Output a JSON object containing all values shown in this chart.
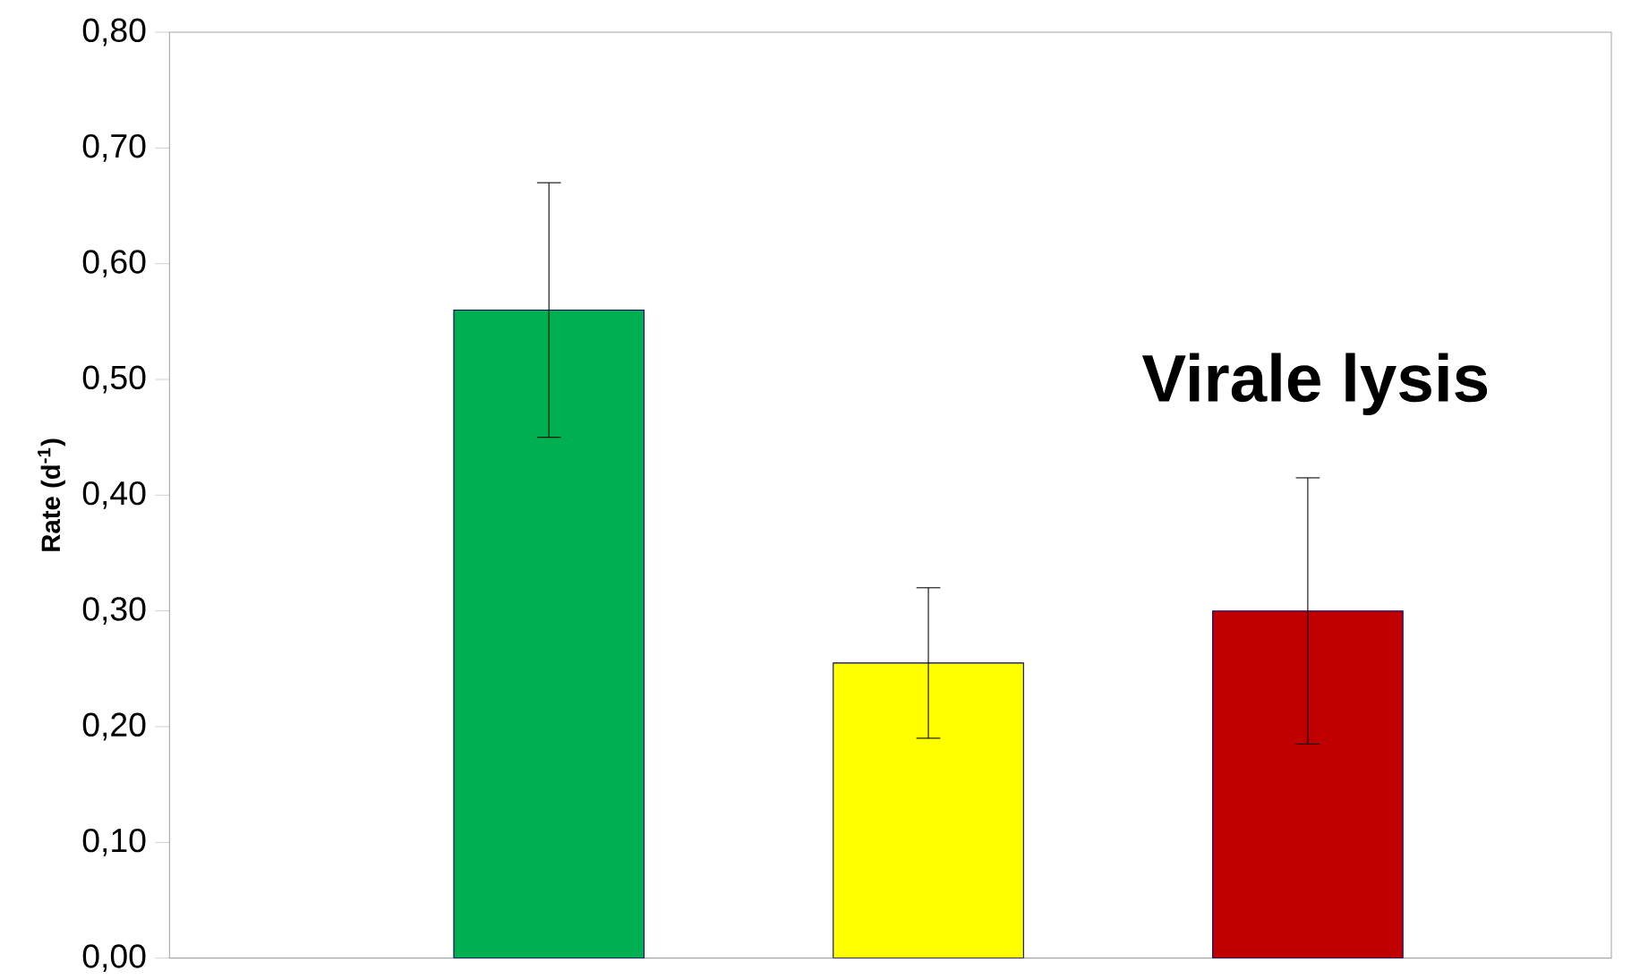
{
  "chart_data": {
    "type": "bar",
    "ylabel": "Rate (d$^{-1}$)",
    "categories": [
      null,
      null,
      null
    ],
    "values": [
      0.56,
      0.255,
      0.3
    ],
    "colors": [
      "#00b050",
      "#ffff00",
      "#c00000"
    ],
    "errors": [
      [
        0.45,
        0.67
      ],
      [
        0.19,
        0.32
      ],
      [
        0.185,
        0.415
      ]
    ],
    "ylim": [
      0,
      0.8
    ],
    "yticks": [
      {
        "value": 0,
        "label": "0,00"
      },
      {
        "value": 0.1,
        "label": "0,10"
      },
      {
        "value": 0.2,
        "label": "0,20"
      },
      {
        "value": 0.3,
        "label": "0,30"
      },
      {
        "value": 0.4,
        "label": "0,40"
      },
      {
        "value": 0.5,
        "label": "0,50"
      },
      {
        "value": 0.6,
        "label": "0,60"
      },
      {
        "value": 0.7,
        "label": "0,70"
      },
      {
        "value": 0.8,
        "label": "0,80"
      }
    ],
    "annotations": [
      "Virale lysis"
    ],
    "grid": false
  }
}
